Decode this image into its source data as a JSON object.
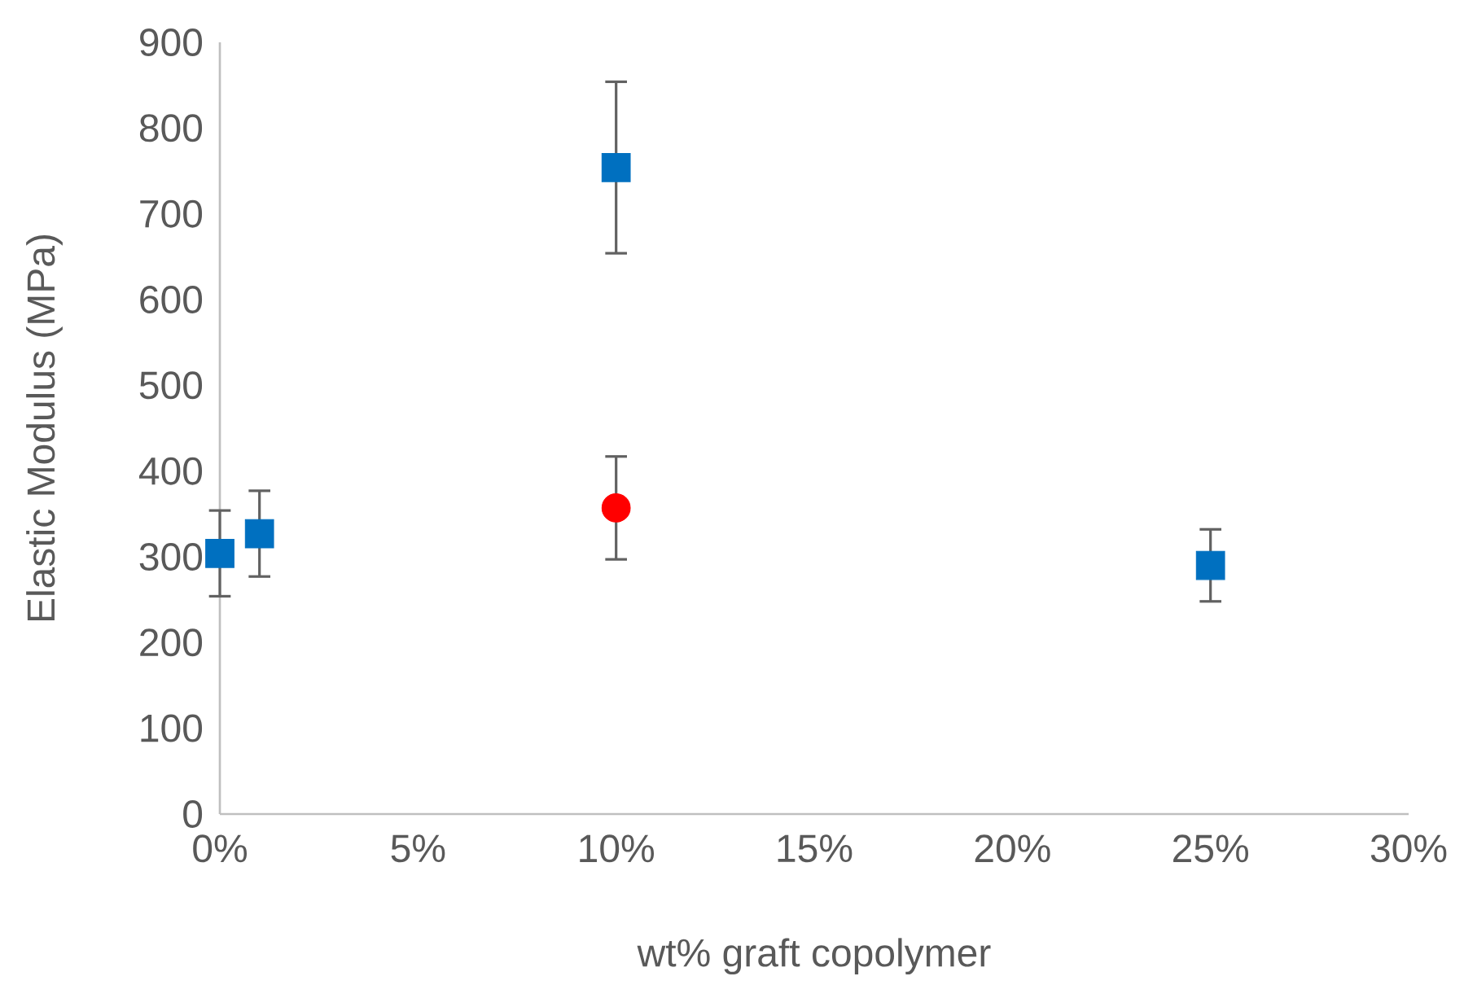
{
  "chart_data": {
    "type": "scatter",
    "xlabel": "wt% graft copolymer",
    "ylabel": "Elastic Modulus (MPa)",
    "xlim": [
      0,
      30
    ],
    "ylim": [
      0,
      900
    ],
    "xticks": [
      {
        "value": 0,
        "label": "0%"
      },
      {
        "value": 5,
        "label": "5%"
      },
      {
        "value": 10,
        "label": "10%"
      },
      {
        "value": 15,
        "label": "15%"
      },
      {
        "value": 20,
        "label": "20%"
      },
      {
        "value": 25,
        "label": "25%"
      },
      {
        "value": 30,
        "label": "30%"
      }
    ],
    "yticks": [
      0,
      100,
      200,
      300,
      400,
      500,
      600,
      700,
      800,
      900
    ],
    "series": [
      {
        "color": "#0070c0",
        "marker": "square",
        "x": [
          0,
          1,
          10,
          25
        ],
        "values": [
          304,
          327,
          754,
          290
        ],
        "errors": [
          50,
          50,
          100,
          42
        ]
      },
      {
        "color": "#ff0000",
        "marker": "circle",
        "x": [
          10
        ],
        "values": [
          357
        ],
        "errors": [
          60
        ]
      }
    ]
  }
}
